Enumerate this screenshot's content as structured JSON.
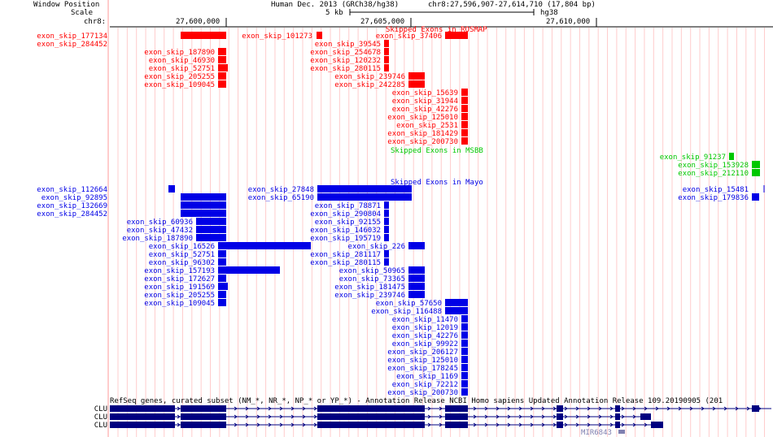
{
  "colors": {
    "red": "#ff0000",
    "green": "#00c800",
    "blue": "#0000e6",
    "navy": "#000080",
    "grid": "#ffcccc",
    "ink": "#000000"
  },
  "header": {
    "window_position_label": "Window Position",
    "scale_label": "Scale",
    "chrom_label": "chr8:",
    "assembly": "Human Dec. 2013 (GRCh38/hg38)",
    "position": "chr8:27,596,907-27,614,710 (17,804 bp)",
    "scale_value": "5 kb",
    "scale_db": "hg38",
    "ruler_ticks": [
      "27,600,000",
      "27,605,000",
      "27,610,000"
    ]
  },
  "tracks": {
    "rosmap": {
      "title": "Skipped Exons in ROSMAP",
      "items": [
        {
          "name": "exon_skip_177134"
        },
        {
          "name": "exon_skip_284452"
        },
        {
          "name": "exon_skip_187890"
        },
        {
          "name": "exon_skip_46930"
        },
        {
          "name": "exon_skip_52751"
        },
        {
          "name": "exon_skip_205255"
        },
        {
          "name": "exon_skip_109045"
        },
        {
          "name": "exon_skip_101273"
        },
        {
          "name": "exon_skip_37406"
        },
        {
          "name": "exon_skip_39545"
        },
        {
          "name": "exon_skip_254678"
        },
        {
          "name": "exon_skip_120232"
        },
        {
          "name": "exon_skip_280115"
        },
        {
          "name": "exon_skip_239746"
        },
        {
          "name": "exon_skip_242285"
        },
        {
          "name": "exon_skip_15639"
        },
        {
          "name": "exon_skip_31944"
        },
        {
          "name": "exon_skip_42276"
        },
        {
          "name": "exon_skip_125010"
        },
        {
          "name": "exon_skip_2531"
        },
        {
          "name": "exon_skip_181429"
        },
        {
          "name": "exon_skip_200730"
        }
      ]
    },
    "msbb": {
      "title": "Skipped Exons in MSBB",
      "items": [
        {
          "name": "exon_skip_91237"
        },
        {
          "name": "exon_skip_153928"
        },
        {
          "name": "exon_skip_212110"
        }
      ]
    },
    "mayo": {
      "title": "Skipped Exons in Mayo",
      "items": [
        {
          "name": "exon_skip_112664"
        },
        {
          "name": "exon_skip_92895"
        },
        {
          "name": "exon_skip_132669"
        },
        {
          "name": "exon_skip_284452"
        },
        {
          "name": "exon_skip_60936"
        },
        {
          "name": "exon_skip_47432"
        },
        {
          "name": "exon_skip_187890"
        },
        {
          "name": "exon_skip_16526"
        },
        {
          "name": "exon_skip_52751"
        },
        {
          "name": "exon_skip_96302"
        },
        {
          "name": "exon_skip_157193"
        },
        {
          "name": "exon_skip_172627"
        },
        {
          "name": "exon_skip_191569"
        },
        {
          "name": "exon_skip_205255"
        },
        {
          "name": "exon_skip_109045"
        },
        {
          "name": "exon_skip_27848"
        },
        {
          "name": "exon_skip_65190"
        },
        {
          "name": "exon_skip_78871"
        },
        {
          "name": "exon_skip_290804"
        },
        {
          "name": "exon_skip_92155"
        },
        {
          "name": "exon_skip_146032"
        },
        {
          "name": "exon_skip_195719"
        },
        {
          "name": "exon_skip_226"
        },
        {
          "name": "exon_skip_281117"
        },
        {
          "name": "exon_skip_280115"
        },
        {
          "name": "exon_skip_50965"
        },
        {
          "name": "exon_skip_73365"
        },
        {
          "name": "exon_skip_181475"
        },
        {
          "name": "exon_skip_239746"
        },
        {
          "name": "exon_skip_57650"
        },
        {
          "name": "exon_skip_116488"
        },
        {
          "name": "exon_skip_11470"
        },
        {
          "name": "exon_skip_12019"
        },
        {
          "name": "exon_skip_42276"
        },
        {
          "name": "exon_skip_99922"
        },
        {
          "name": "exon_skip_206127"
        },
        {
          "name": "exon_skip_125010"
        },
        {
          "name": "exon_skip_178245"
        },
        {
          "name": "exon_skip_1169"
        },
        {
          "name": "exon_skip_72212"
        },
        {
          "name": "exon_skip_200730"
        },
        {
          "name": "exon_skip_15481"
        },
        {
          "name": "exon_skip_179836"
        }
      ]
    },
    "refseq": {
      "title": "RefSeq genes, curated subset (NM_*, NR_*, NP_* or YP_*) - Annotation Release NCBI Homo sapiens Updated Annotation Release 109.20190905 (201",
      "genes": [
        {
          "name": "CLU"
        },
        {
          "name": "CLU"
        },
        {
          "name": "CLU"
        },
        {
          "name": "MIR6843"
        }
      ]
    }
  }
}
